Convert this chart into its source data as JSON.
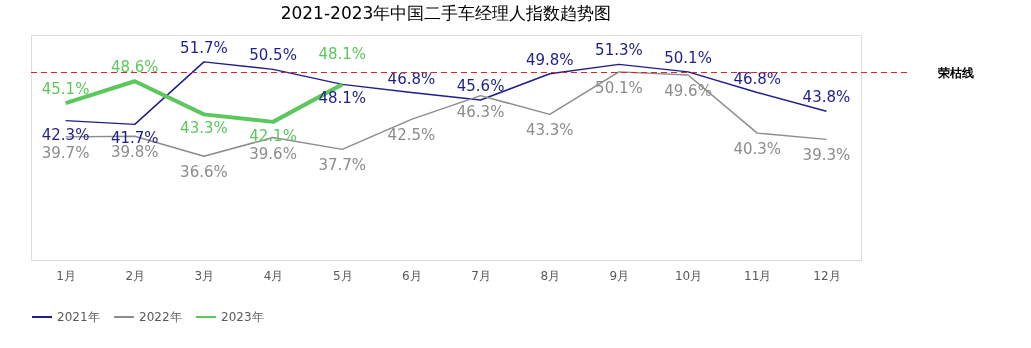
{
  "chart_data": {
    "type": "line",
    "title": "2021-2023年中国二手车经理人指数趋势图",
    "categories": [
      "1月",
      "2月",
      "3月",
      "4月",
      "5月",
      "6月",
      "7月",
      "8月",
      "9月",
      "10月",
      "11月",
      "12月"
    ],
    "series": [
      {
        "name": "2021年",
        "color": "#1f1f8c",
        "values": [
          42.3,
          41.7,
          51.7,
          50.5,
          48.1,
          46.8,
          45.6,
          49.8,
          51.3,
          50.1,
          46.8,
          43.8
        ],
        "value_labels": [
          "42.3%",
          "41.7%",
          "51.7%",
          "50.5%",
          "48.1%",
          "46.8%",
          "45.6%",
          "49.8%",
          "51.3%",
          "50.1%",
          "46.8%",
          "43.8%"
        ]
      },
      {
        "name": "2022年",
        "color": "#8c8c8c",
        "values": [
          39.7,
          39.8,
          36.6,
          39.6,
          37.7,
          42.5,
          46.3,
          43.3,
          50.1,
          49.6,
          40.3,
          39.3
        ],
        "value_labels": [
          "39.7%",
          "39.8%",
          "36.6%",
          "39.6%",
          "37.7%",
          "42.5%",
          "46.3%",
          "43.3%",
          "50.1%",
          "49.6%",
          "40.3%",
          "39.3%"
        ]
      },
      {
        "name": "2023年",
        "color": "#5cc85c",
        "values": [
          45.1,
          48.6,
          43.3,
          42.1,
          48.1,
          null,
          null,
          null,
          null,
          null,
          null,
          null
        ],
        "value_labels": [
          "45.1%",
          "48.6%",
          "43.3%",
          "42.1%",
          "48.1%",
          null,
          null,
          null,
          null,
          null,
          null,
          null
        ]
      }
    ],
    "ylim": [
      20,
      56
    ],
    "tick_labels": "x",
    "legend": "bottom",
    "grid": false,
    "ref_lines": [
      {
        "axis": "y",
        "value": 50,
        "label": "荣枯线",
        "color": "#d62728",
        "line_style": "dashed"
      }
    ]
  }
}
